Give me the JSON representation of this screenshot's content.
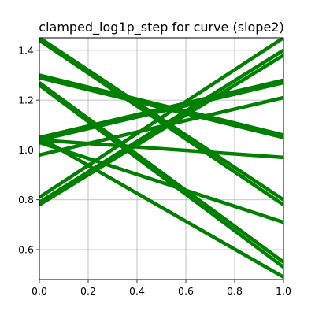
{
  "chart_data": {
    "type": "line",
    "title": "clamped_log1p_step for curve (slope2)",
    "xlabel": "",
    "ylabel": "",
    "xlim": [
      0.0,
      1.0
    ],
    "ylim": [
      0.48,
      1.45
    ],
    "xticks": [
      "0.0",
      "0.2",
      "0.4",
      "0.6",
      "0.8",
      "1.0"
    ],
    "yticks": [
      "0.6",
      "0.8",
      "1.0",
      "1.2",
      "1.4"
    ],
    "grid": true,
    "legend": "none",
    "line_color": "#008000",
    "series": [
      {
        "x": [
          0.0,
          1.0
        ],
        "y": [
          1.45,
          0.8
        ]
      },
      {
        "x": [
          0.0,
          1.0
        ],
        "y": [
          1.44,
          0.78
        ]
      },
      {
        "x": [
          0.0,
          1.0
        ],
        "y": [
          1.3,
          1.06
        ]
      },
      {
        "x": [
          0.0,
          1.0
        ],
        "y": [
          1.29,
          1.05
        ]
      },
      {
        "x": [
          0.0,
          1.0
        ],
        "y": [
          1.27,
          0.55
        ]
      },
      {
        "x": [
          0.0,
          1.0
        ],
        "y": [
          1.26,
          0.53
        ]
      },
      {
        "x": [
          0.0,
          1.0
        ],
        "y": [
          1.05,
          1.28
        ]
      },
      {
        "x": [
          0.0,
          1.0
        ],
        "y": [
          1.04,
          1.27
        ]
      },
      {
        "x": [
          0.0,
          1.0
        ],
        "y": [
          1.04,
          0.97
        ]
      },
      {
        "x": [
          0.0,
          1.0
        ],
        "y": [
          1.05,
          0.49
        ]
      },
      {
        "x": [
          0.0,
          1.0
        ],
        "y": [
          1.03,
          0.71
        ]
      },
      {
        "x": [
          0.0,
          1.0
        ],
        "y": [
          0.98,
          1.21
        ]
      },
      {
        "x": [
          0.0,
          1.0
        ],
        "y": [
          0.81,
          1.45
        ]
      },
      {
        "x": [
          0.0,
          1.0
        ],
        "y": [
          0.79,
          1.4
        ]
      },
      {
        "x": [
          0.0,
          1.0
        ],
        "y": [
          0.78,
          1.38
        ]
      }
    ]
  }
}
